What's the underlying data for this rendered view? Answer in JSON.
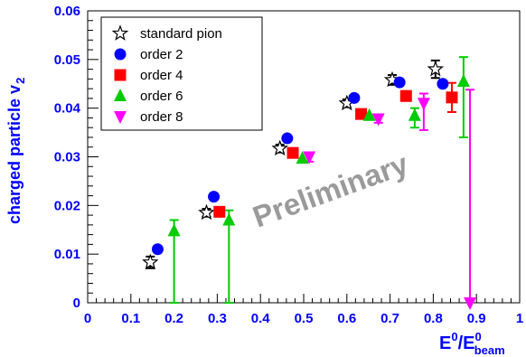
{
  "chart_data": {
    "type": "scatter",
    "xlabel": "E",
    "xlabel_sup1": "0",
    "xlabel_mid": "/E",
    "xlabel_sup2": "0",
    "xlabel_sub": "beam",
    "ylabel": "charged particle v",
    "ylabel_sub": "2",
    "xlim": [
      0,
      1
    ],
    "ylim": [
      0,
      0.06
    ],
    "xticks": [
      "0",
      "0.1",
      "0.2",
      "0.3",
      "0.4",
      "0.5",
      "0.6",
      "0.7",
      "0.8",
      "0.9",
      "1"
    ],
    "yticks": [
      "0",
      "0.01",
      "0.02",
      "0.03",
      "0.04",
      "0.05",
      "0.06"
    ],
    "annotation": "Preliminary",
    "legend_position": "top-left",
    "grid": false,
    "series": [
      {
        "name": "standard pion",
        "marker": "open-star",
        "color": "#000000",
        "points": [
          {
            "x": 0.145,
            "y": 0.0083,
            "err": 0.0012
          },
          {
            "x": 0.275,
            "y": 0.0185,
            "err": 0.0008
          },
          {
            "x": 0.445,
            "y": 0.0317,
            "err": 0.0008
          },
          {
            "x": 0.6,
            "y": 0.041,
            "err": 0.0008
          },
          {
            "x": 0.705,
            "y": 0.0458,
            "err": 0.001
          },
          {
            "x": 0.805,
            "y": 0.048,
            "err": 0.0018
          }
        ]
      },
      {
        "name": "order 2",
        "marker": "circle",
        "color": "#0000ff",
        "points": [
          {
            "x": 0.162,
            "y": 0.011,
            "err": 0
          },
          {
            "x": 0.292,
            "y": 0.0218,
            "err": 0
          },
          {
            "x": 0.462,
            "y": 0.0338,
            "err": 0
          },
          {
            "x": 0.617,
            "y": 0.0421,
            "err": 0
          },
          {
            "x": 0.722,
            "y": 0.0453,
            "err": 0
          },
          {
            "x": 0.822,
            "y": 0.045,
            "err": 0
          }
        ]
      },
      {
        "name": "order 4",
        "marker": "square",
        "color": "#ff0000",
        "points": [
          {
            "x": 0.305,
            "y": 0.0187,
            "err": 0
          },
          {
            "x": 0.475,
            "y": 0.0308,
            "err": 0
          },
          {
            "x": 0.633,
            "y": 0.0388,
            "err": 0
          },
          {
            "x": 0.737,
            "y": 0.0425,
            "err": 0.001
          },
          {
            "x": 0.843,
            "y": 0.0422,
            "err": 0.003
          }
        ]
      },
      {
        "name": "order 6",
        "marker": "triangle-up",
        "color": "#00cc00",
        "points": [
          {
            "x": 0.2,
            "y": 0.0148,
            "err_low": 0.0148,
            "err_high": 0.0022
          },
          {
            "x": 0.327,
            "y": 0.017,
            "err_low": 0.017,
            "err_high": 0.002
          },
          {
            "x": 0.497,
            "y": 0.0297,
            "err_low": 0,
            "err_high": 0
          },
          {
            "x": 0.652,
            "y": 0.0385,
            "err_low": 0,
            "err_high": 0
          },
          {
            "x": 0.757,
            "y": 0.0385,
            "err_low": 0.0025,
            "err_high": 0.0015
          },
          {
            "x": 0.87,
            "y": 0.0455,
            "err_low": 0.0115,
            "err_high": 0.005
          }
        ]
      },
      {
        "name": "order 8",
        "marker": "triangle-down",
        "color": "#ff00ff",
        "points": [
          {
            "x": 0.513,
            "y": 0.03,
            "err_low": 0.001,
            "err_high": 0
          },
          {
            "x": 0.673,
            "y": 0.0378,
            "err_low": 0.0008,
            "err_high": 0
          },
          {
            "x": 0.778,
            "y": 0.041,
            "err_low": 0.0055,
            "err_high": 0.002
          },
          {
            "x": 0.885,
            "y": 0.0,
            "err_low": 0,
            "err_high": 0.0438
          }
        ]
      }
    ]
  }
}
